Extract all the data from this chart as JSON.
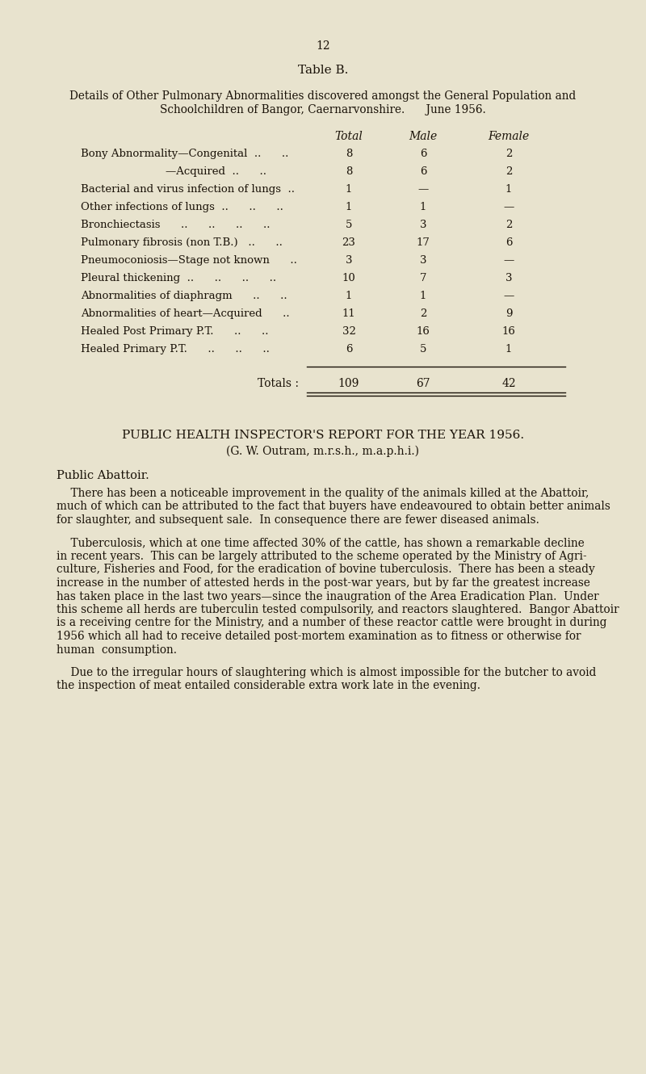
{
  "bg_color": "#e8e3ce",
  "page_number": "12",
  "table_title": "Table B.",
  "table_subtitle_line1": "Details of Other Pulmonary Abnormalities discovered amongst the General Population and",
  "table_subtitle_line2": "Schoolchildren of Bangor, Caernarvonshire.      June 1956.",
  "col_headers": [
    "Total",
    "Male",
    "Female"
  ],
  "rows": [
    [
      "Bony Abnormality—Congenital  ..      ..",
      "8",
      "6",
      "2"
    ],
    [
      "—Acquired  ..      ..",
      "8",
      "6",
      "2"
    ],
    [
      "Bacterial and virus infection of lungs  ..",
      "1",
      "—",
      "1"
    ],
    [
      "Other infections of lungs  ..      ..      ..",
      "1",
      "1",
      "—"
    ],
    [
      "Bronchiectasis      ..      ..      ..      ..",
      "5",
      "3",
      "2"
    ],
    [
      "Pulmonary fibrosis (non T.B.)   ..      ..",
      "23",
      "17",
      "6"
    ],
    [
      "Pneumoconiosis—Stage not known      ..",
      "3",
      "3",
      "—"
    ],
    [
      "Pleural thickening  ..      ..      ..      ..",
      "10",
      "7",
      "3"
    ],
    [
      "Abnormalities of diaphragm      ..      ..",
      "1",
      "1",
      "—"
    ],
    [
      "Abnormalities of heart—Acquired      ..",
      "11",
      "2",
      "9"
    ],
    [
      "Healed Post Primary P.T.      ..      ..",
      "32",
      "16",
      "16"
    ],
    [
      "Healed Primary P.T.      ..      ..      ..",
      "6",
      "5",
      "1"
    ]
  ],
  "totals_label": "Totals :",
  "totals": [
    "109",
    "67",
    "42"
  ],
  "section_title_line1": "PUBLIC HEALTH INSPECTOR'S REPORT FOR THE YEAR 1956.",
  "section_title_line2": "(G. W. Outram, m.r.s.h., m.a.p.h.i.)",
  "subsection_title": "Public Abattoir.",
  "paragraph1_lines": [
    "    There has been a noticeable improvement in the quality of the animals killed at the Abattoir,",
    "much of which can be attributed to the fact that buyers have endeavoured to obtain better animals",
    "for slaughter, and subsequent sale.  In consequence there are fewer diseased animals."
  ],
  "paragraph2_lines": [
    "    Tuberculosis, which at one time affected 30% of the cattle, has shown a remarkable decline",
    "in recent years.  This can be largely attributed to the scheme operated by the Ministry of Agri-",
    "culture, Fisheries and Food, for the eradication of bovine tuberculosis.  There has been a steady",
    "increase in the number of attested herds in the post-war years, but by far the greatest increase",
    "has taken place in the last two years—since the inaugration of the Area Eradication Plan.  Under",
    "this scheme all herds are tuberculin tested compulsorily, and reactors slaughtered.  Bangor Abattoir",
    "is a receiving centre for the Ministry, and a number of these reactor cattle were brought in during",
    "1956 which all had to receive detailed post-mortem examination as to fitness or otherwise for",
    "human  consumption."
  ],
  "paragraph3_lines": [
    "    Due to the irregular hours of slaughtering which is almost impossible for the butcher to avoid",
    "the inspection of meat entailed considerable extra work late in the evening."
  ]
}
